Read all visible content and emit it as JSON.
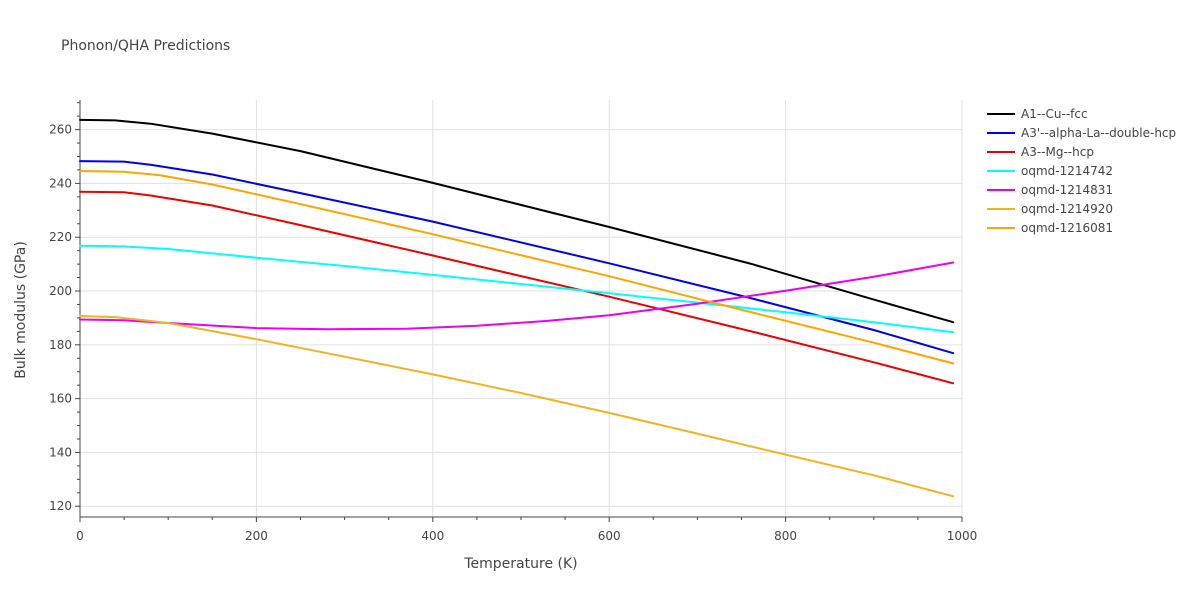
{
  "chart_data": {
    "type": "line",
    "title": "Phonon/QHA Predictions",
    "xlabel": "Temperature (K)",
    "ylabel": "Bulk modulus (GPa)",
    "xlim": [
      0,
      1000
    ],
    "ylim": [
      116,
      271
    ],
    "xticks": [
      0,
      200,
      400,
      600,
      800,
      1000
    ],
    "xtick_labels": [
      "0",
      "200",
      "400",
      "600",
      "800",
      "1000"
    ],
    "yticks": [
      120,
      140,
      160,
      180,
      200,
      220,
      240,
      260
    ],
    "ytick_labels": [
      "120",
      "140",
      "160",
      "180",
      "200",
      "220",
      "240",
      "260"
    ],
    "grid": true,
    "legend_position": "top-right",
    "series": [
      {
        "name": "A1--Cu--fcc",
        "color": "#000000",
        "x": [
          0,
          40,
          80,
          150,
          250,
          400,
          600,
          760,
          900,
          990
        ],
        "y": [
          263.6,
          263.4,
          262.2,
          258.5,
          252.0,
          240.2,
          223.8,
          210.2,
          196.8,
          188.4
        ]
      },
      {
        "name": "A3'--alpha-La--double-hcp",
        "color": "#0000ee",
        "x": [
          0,
          50,
          80,
          150,
          250,
          400,
          600,
          760,
          900,
          990
        ],
        "y": [
          248.3,
          248.1,
          246.9,
          243.3,
          236.4,
          225.8,
          210.3,
          197.4,
          185.5,
          176.9
        ]
      },
      {
        "name": "A3--Mg--hcp",
        "color": "#ee0000",
        "x": [
          0,
          50,
          80,
          150,
          250,
          400,
          600,
          760,
          900,
          990
        ],
        "y": [
          236.9,
          236.7,
          235.5,
          231.8,
          224.5,
          213.2,
          197.9,
          185.1,
          173.5,
          165.7
        ]
      },
      {
        "name": "oqmd-1214742",
        "color": "#00ffff",
        "x": [
          0,
          50,
          100,
          200,
          300,
          400,
          500,
          600,
          700,
          800,
          900,
          990
        ],
        "y": [
          216.8,
          216.6,
          215.6,
          212.4,
          209.3,
          206.0,
          202.6,
          199.2,
          195.7,
          192.1,
          188.4,
          184.7
        ]
      },
      {
        "name": "oqmd-1214831",
        "color": "#ee00ee",
        "x": [
          0,
          50,
          100,
          200,
          280,
          370,
          450,
          530,
          600,
          700,
          800,
          900,
          990
        ],
        "y": [
          189.4,
          189.1,
          188.1,
          186.2,
          185.8,
          186.0,
          187.1,
          188.9,
          191.0,
          195.3,
          200.1,
          205.3,
          210.6
        ]
      },
      {
        "name": "oqmd-1214920",
        "color": "#eeb422",
        "x": [
          0,
          40,
          100,
          200,
          300,
          400,
          500,
          600,
          700,
          800,
          900,
          990
        ],
        "y": [
          190.7,
          190.3,
          188.1,
          182.1,
          175.6,
          169.0,
          162.1,
          154.7,
          147.0,
          139.2,
          131.5,
          123.7
        ]
      },
      {
        "name": "oqmd-1216081",
        "color": "#ffa500",
        "x": [
          0,
          50,
          90,
          150,
          250,
          400,
          600,
          760,
          900,
          990
        ],
        "y": [
          244.6,
          244.3,
          243.1,
          239.6,
          232.3,
          221.1,
          205.5,
          192.2,
          180.8,
          173.1
        ]
      }
    ]
  }
}
